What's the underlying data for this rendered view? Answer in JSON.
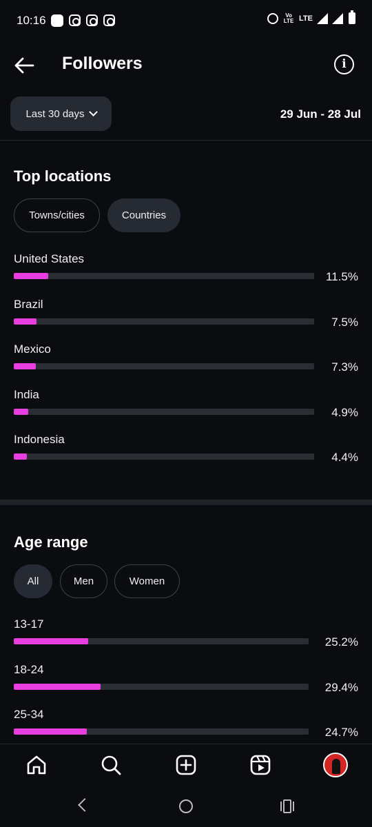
{
  "status_bar": {
    "time": "10:16",
    "network_label": "LTE",
    "volte_label": "Vo LTE"
  },
  "header": {
    "title": "Followers"
  },
  "filter": {
    "date_button_label": "Last 30 days",
    "date_range": "29 Jun - 28 Jul"
  },
  "top_locations": {
    "title": "Top locations",
    "tabs": [
      {
        "label": "Towns/cities",
        "selected": false
      },
      {
        "label": "Countries",
        "selected": true
      }
    ],
    "items": [
      {
        "label": "United States",
        "value": "11.5%",
        "fraction": 0.115
      },
      {
        "label": "Brazil",
        "value": "7.5%",
        "fraction": 0.075
      },
      {
        "label": "Mexico",
        "value": "7.3%",
        "fraction": 0.073
      },
      {
        "label": "India",
        "value": "4.9%",
        "fraction": 0.049
      },
      {
        "label": "Indonesia",
        "value": "4.4%",
        "fraction": 0.044
      }
    ]
  },
  "age_range": {
    "title": "Age range",
    "tabs": [
      {
        "label": "All",
        "selected": true
      },
      {
        "label": "Men",
        "selected": false
      },
      {
        "label": "Women",
        "selected": false
      }
    ],
    "items": [
      {
        "label": "13-17",
        "value": "25.2%",
        "fraction": 0.252
      },
      {
        "label": "18-24",
        "value": "29.4%",
        "fraction": 0.294
      },
      {
        "label": "25-34",
        "value": "24.7%",
        "fraction": 0.247
      }
    ]
  },
  "colors": {
    "accent": "#e83ee0",
    "background": "#0b0c10",
    "track": "#2a2d33",
    "pill": "#262a33"
  },
  "bottom_nav": {
    "icons": [
      "home-icon",
      "search-icon",
      "create-icon",
      "reels-icon",
      "profile-avatar"
    ]
  }
}
